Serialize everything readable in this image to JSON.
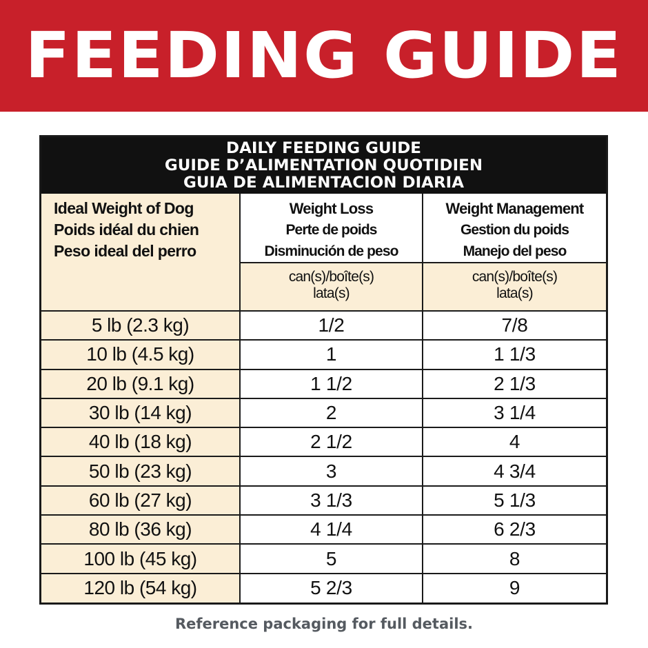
{
  "banner": {
    "title": "FEEDING GUIDE"
  },
  "guide": {
    "title_lines": [
      "DAILY FEEDING GUIDE",
      "GUIDE D’ALIMENTATION QUOTIDIEN",
      "GUIA DE ALIMENTACION DIARIA"
    ],
    "weight_header": [
      "Ideal Weight of Dog",
      "Poids idéal du chien",
      "Peso ideal del perro"
    ],
    "columns": [
      {
        "lines": [
          "Weight Loss",
          "Perte de poids",
          "Disminución de peso"
        ]
      },
      {
        "lines": [
          "Weight Management",
          "Gestion du poids",
          "Manejo del peso"
        ]
      }
    ],
    "unit_lines": [
      "can(s)/boîte(s)",
      "lata(s)"
    ],
    "rows": [
      {
        "weight": "5 lb (2.3 kg)",
        "loss": "1/2",
        "management": "7/8"
      },
      {
        "weight": "10 lb (4.5 kg)",
        "loss": "1",
        "management": "1 1/3"
      },
      {
        "weight": "20 lb (9.1 kg)",
        "loss": "1 1/2",
        "management": "2 1/3"
      },
      {
        "weight": "30 lb (14 kg)",
        "loss": "2",
        "management": "3 1/4"
      },
      {
        "weight": "40 lb (18 kg)",
        "loss": "2 1/2",
        "management": "4"
      },
      {
        "weight": "50 lb (23 kg)",
        "loss": "3",
        "management": "4 3/4"
      },
      {
        "weight": "60 lb (27 kg)",
        "loss": "3 1/3",
        "management": "5 1/3"
      },
      {
        "weight": "80 lb (36 kg)",
        "loss": "4 1/4",
        "management": "6 2/3"
      },
      {
        "weight": "100 lb (45 kg)",
        "loss": "5",
        "management": "8"
      },
      {
        "weight": "120 lb (54 kg)",
        "loss": "5 2/3",
        "management": "9"
      }
    ]
  },
  "footer": {
    "note": "Reference packaging for full details."
  },
  "colors": {
    "banner": "#c8202a",
    "header": "#111111",
    "cream": "#fbeed6",
    "note": "#555a60"
  }
}
